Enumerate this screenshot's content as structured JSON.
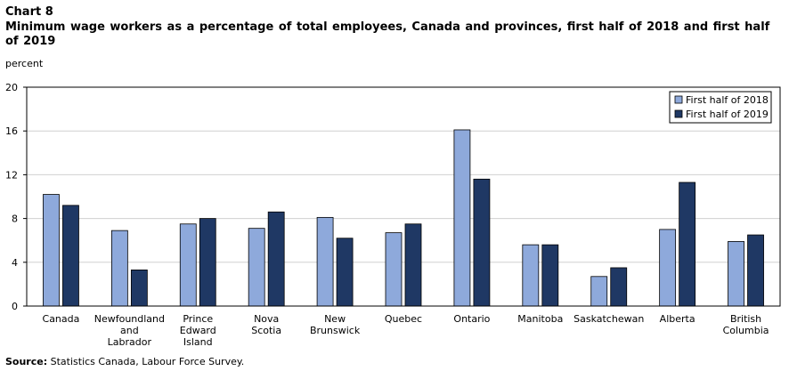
{
  "header": {
    "chart_label": "Chart 8",
    "title": "Minimum wage workers as a percentage of total employees, Canada and provinces, first half of 2018 and first half of 2019",
    "y_unit": "percent"
  },
  "footer": {
    "source_label": "Source:",
    "source_text": "Statistics Canada, Labour Force Survey."
  },
  "chart_data": {
    "type": "bar",
    "title": "Minimum wage workers as a percentage of total employees, Canada and provinces, first half of 2018 and first half of 2019",
    "ylabel": "percent",
    "xlabel": "",
    "ylim": [
      0,
      20
    ],
    "yticks": [
      0,
      4,
      8,
      12,
      16,
      20
    ],
    "grid": true,
    "legend_position": "top-right",
    "categories": [
      [
        "Canada"
      ],
      [
        "Newfoundland",
        "and",
        "Labrador"
      ],
      [
        "Prince",
        "Edward",
        "Island"
      ],
      [
        "Nova",
        "Scotia"
      ],
      [
        "New",
        "Brunswick"
      ],
      [
        "Quebec"
      ],
      [
        "Ontario"
      ],
      [
        "Manitoba"
      ],
      [
        "Saskatchewan"
      ],
      [
        "Alberta"
      ],
      [
        "British",
        "Columbia"
      ]
    ],
    "series": [
      {
        "name": "First half of 2018",
        "color": "#8ea9db",
        "values": [
          10.2,
          6.9,
          7.5,
          7.1,
          8.1,
          6.7,
          16.1,
          5.6,
          2.7,
          7.0,
          5.9
        ]
      },
      {
        "name": "First half of 2019",
        "color": "#1f3864",
        "values": [
          9.2,
          3.3,
          8.0,
          8.6,
          6.2,
          7.5,
          11.6,
          5.6,
          3.5,
          11.3,
          6.5
        ]
      }
    ]
  }
}
